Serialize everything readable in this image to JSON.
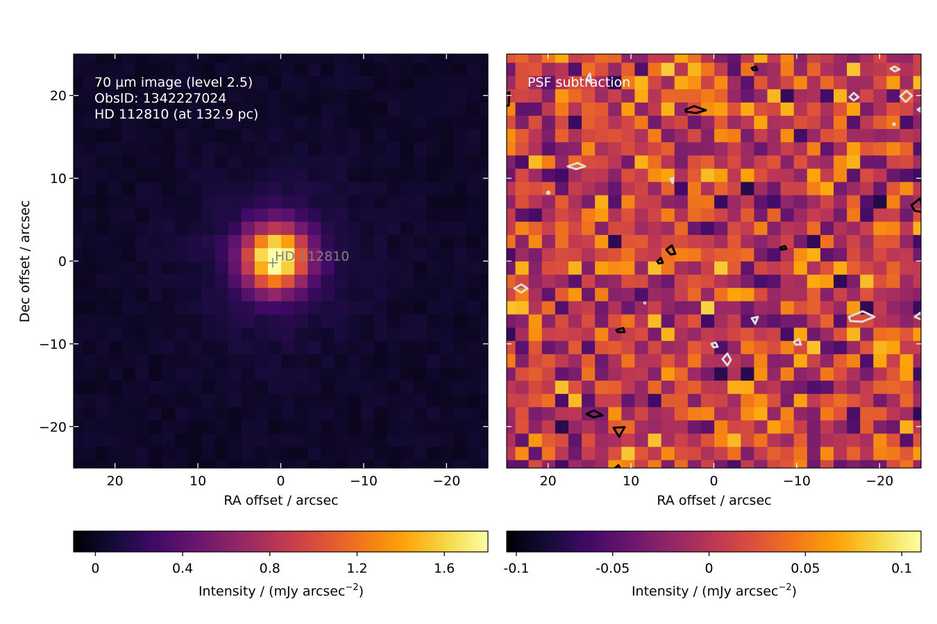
{
  "chart_data": [
    {
      "type": "heatmap",
      "panel": "left",
      "annotation_lines": [
        "70 µm image (level 2.5)",
        "ObsID: 1342227024",
        "HD 112810 (at 132.9 pc)"
      ],
      "source_marker": {
        "label": "HD 112810",
        "x": 0,
        "y": 0
      },
      "xlabel": "RA offset / arcsec",
      "ylabel": "Dec offset / arcsec",
      "xlim": [
        25,
        -25
      ],
      "ylim": [
        -25,
        25
      ],
      "xticks": [
        20,
        10,
        0,
        -10,
        -20
      ],
      "xtick_labels": [
        "20",
        "10",
        "0",
        "−10",
        "−20"
      ],
      "yticks": [
        20,
        10,
        0,
        -10,
        -20
      ],
      "ytick_labels": [
        "20",
        "10",
        "0",
        "−10",
        "−20"
      ],
      "colormap": "inferno",
      "pixel_size_arcsec": 1.6,
      "peak_intensity": 1.8,
      "colorbar": {
        "label": "Intensity / (mJy arcsec",
        "label_sup": "−2",
        "label_end": ")",
        "range": [
          -0.1,
          1.8
        ],
        "ticks": [
          0,
          0.4,
          0.8,
          1.2,
          1.6
        ],
        "tick_labels": [
          "0",
          "0.4",
          "0.8",
          "1.2",
          "1.6"
        ]
      }
    },
    {
      "type": "heatmap",
      "panel": "right",
      "annotation_lines": [
        "PSF subtraction"
      ],
      "xlabel": "RA offset / arcsec",
      "xlim": [
        25,
        -25
      ],
      "ylim": [
        -25,
        25
      ],
      "xticks": [
        20,
        10,
        0,
        -10,
        -20
      ],
      "xtick_labels": [
        "20",
        "10",
        "0",
        "−10",
        "−20"
      ],
      "colormap": "inferno",
      "pixel_size_arcsec": 1.6,
      "contours": [
        {
          "level": "positive",
          "color": "#000000"
        },
        {
          "level": "negative",
          "color": "#dddddd"
        }
      ],
      "colorbar": {
        "label": "Intensity / (mJy arcsec",
        "label_sup": "−2",
        "label_end": ")",
        "range": [
          -0.105,
          0.11
        ],
        "ticks": [
          -0.1,
          -0.05,
          0,
          0.05,
          0.1
        ],
        "tick_labels": [
          "-0.1",
          "-0.05",
          "0",
          "0.05",
          "0.1"
        ]
      }
    }
  ]
}
